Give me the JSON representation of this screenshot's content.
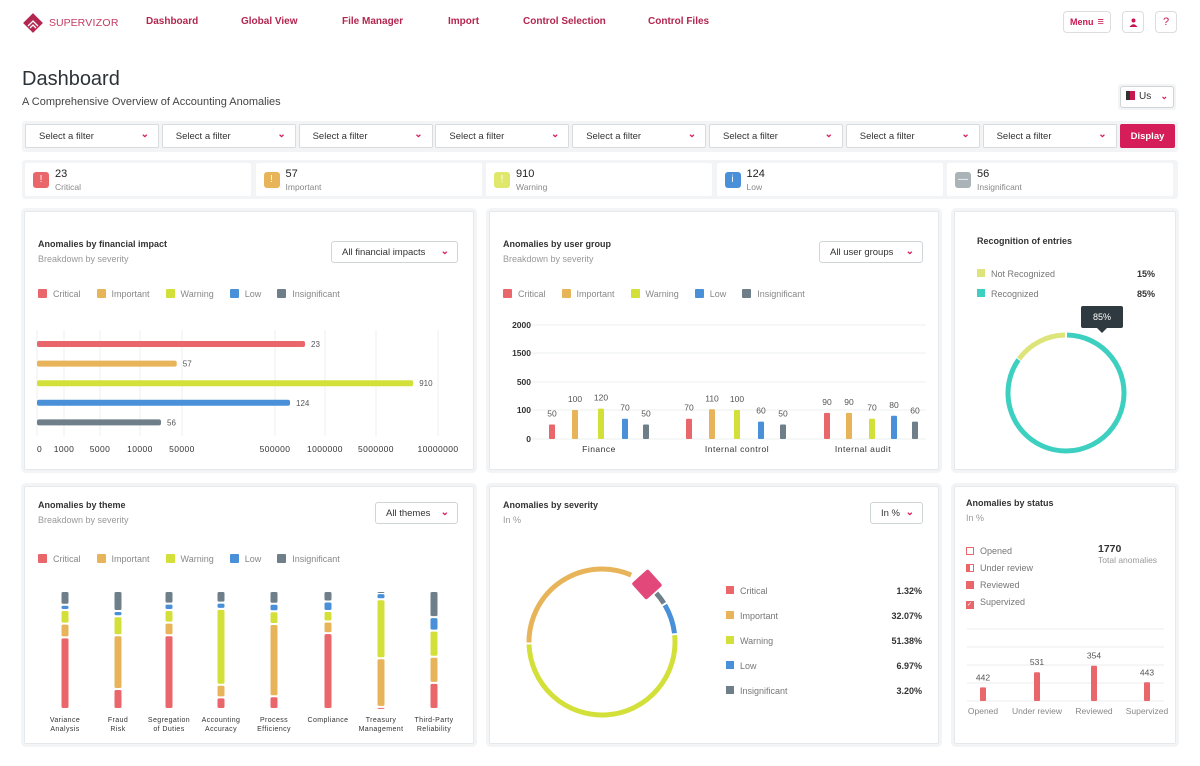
{
  "colors": {
    "brand": "#c8174f",
    "critical": "#e9666b",
    "important": "#e8b45a",
    "warning": "#d4e03a",
    "low": "#4a90d9",
    "insignificant": "#6e7f8a",
    "teal": "#3dd0c0",
    "light_green": "#dde57a"
  },
  "logo": {
    "text_light": "SUPER",
    "text_bold": "VIZOR"
  },
  "nav": [
    "Dashboard",
    "Global View",
    "File Manager",
    "Import",
    "Control Selection",
    "Control Files"
  ],
  "header": {
    "menu_label": "Menu",
    "menu_icon": "hamburger-icon",
    "user_icon": "user-icon",
    "help_label": "?"
  },
  "page": {
    "title": "Dashboard",
    "subtitle": "A Comprehensive Overview of Accounting Anomalies",
    "locale": "Us"
  },
  "filters": {
    "placeholders": [
      "Select a filter",
      "Select a filter",
      "Select a filter",
      "Select a filter",
      "Select a filter",
      "Select a filter",
      "Select a filter",
      "Select a filter"
    ],
    "display_label": "Display"
  },
  "kpis": [
    {
      "value": "23",
      "label": "Critical",
      "icon": "!"
    },
    {
      "value": "57",
      "label": "Important",
      "icon": "!"
    },
    {
      "value": "910",
      "label": "Warning",
      "icon": "!"
    },
    {
      "value": "124",
      "label": "Low",
      "icon": "i"
    },
    {
      "value": "56",
      "label": "Insignificant",
      "icon": "—"
    }
  ],
  "severity_labels": [
    "Critical",
    "Important",
    "Warning",
    "Low",
    "Insignificant"
  ],
  "financial": {
    "title": "Anomalies by financial impact",
    "subtitle": "Breakdown by severity",
    "dropdown": "All financial impacts",
    "chart_data": {
      "type": "bar",
      "orientation": "horizontal",
      "labels": [
        "23",
        "57",
        "910",
        "124",
        "56"
      ],
      "bar_values": [
        800000,
        45000,
        8000000,
        650000,
        30000
      ],
      "ticks": [
        "0",
        "1000",
        "5000",
        "10000",
        "50000",
        "500000",
        "1000000",
        "5000000",
        "10000000"
      ],
      "tick_values": [
        0,
        1000,
        5000,
        10000,
        50000,
        500000,
        1000000,
        5000000,
        10000000
      ],
      "grid": true
    }
  },
  "usergroup": {
    "title": "Anomalies by user group",
    "subtitle": "Breakdown by severity",
    "dropdown": "All user groups",
    "chart_data": {
      "type": "bar",
      "categories": [
        "Finance",
        "Internal control",
        "Internal audit"
      ],
      "series": [
        {
          "name": "Critical",
          "values": [
            50,
            70,
            90
          ]
        },
        {
          "name": "Important",
          "values": [
            100,
            110,
            90
          ]
        },
        {
          "name": "Warning",
          "values": [
            120,
            100,
            70
          ]
        },
        {
          "name": "Low",
          "values": [
            70,
            60,
            80
          ]
        },
        {
          "name": "Insignificant",
          "values": [
            50,
            50,
            60
          ]
        }
      ],
      "yticks": [
        "0",
        "100",
        "500",
        "1500",
        "2000"
      ],
      "ytick_values": [
        0,
        100,
        500,
        1500,
        2000
      ],
      "grid": true
    }
  },
  "recognition": {
    "title": "Recognition of entries",
    "items": [
      {
        "label": "Not Recognized",
        "value": "15%",
        "pct": 15
      },
      {
        "label": "Recognized",
        "value": "85%",
        "pct": 85
      }
    ],
    "tooltip": "85%"
  },
  "theme": {
    "title": "Anomalies by theme",
    "subtitle": "Breakdown by severity",
    "dropdown": "All themes",
    "chart_data": {
      "type": "bar",
      "stacked": true,
      "categories": [
        [
          "Variance",
          "Analysis"
        ],
        [
          "Fraud",
          "Risk"
        ],
        [
          "Segregation",
          "of Duties"
        ],
        [
          "Accounting",
          "Accuracy"
        ],
        [
          "Process",
          "Efficiency"
        ],
        [
          "Compliance",
          ""
        ],
        [
          "Treasury",
          "Management"
        ],
        [
          "Third-Party",
          "Reliability"
        ]
      ],
      "series": [
        {
          "name": "Critical",
          "values": [
            68,
            19,
            70,
            11,
            12,
            72,
            2,
            25
          ]
        },
        {
          "name": "Important",
          "values": [
            13,
            51,
            12,
            12,
            68,
            11,
            47,
            25
          ]
        },
        {
          "name": "Warning",
          "values": [
            13,
            18,
            12,
            72,
            12,
            10,
            57,
            25
          ]
        },
        {
          "name": "Low",
          "values": [
            5,
            5,
            6,
            6,
            7,
            9,
            6,
            13
          ]
        },
        {
          "name": "Insignificant",
          "values": [
            13,
            19,
            12,
            11,
            12,
            10,
            2,
            25
          ]
        }
      ]
    }
  },
  "severity": {
    "title": "Anomalies by severity",
    "subtitle": "In %",
    "dropdown": "In %",
    "chart_data": {
      "type": "pie",
      "donut": true,
      "labels": [
        "Critical",
        "Important",
        "Warning",
        "Low",
        "Insignificant"
      ],
      "values": [
        "1.32%",
        "32.07%",
        "51.38%",
        "6.97%",
        "3.20%"
      ],
      "pct": [
        1.32,
        32.07,
        51.38,
        6.97,
        3.2
      ]
    }
  },
  "status": {
    "title": "Anomalies by status",
    "subtitle": "In %",
    "total": "1770",
    "total_label": "Total anomalies",
    "legend": [
      "Opened",
      "Under review",
      "Reviewed",
      "Supervized"
    ],
    "chart_data": {
      "type": "bar",
      "categories": [
        "Opened",
        "Under review",
        "Reviewed",
        "Supervized"
      ],
      "labels": [
        "442",
        "531",
        "354",
        "443"
      ],
      "levels": [
        0.19,
        0.4,
        0.49,
        0.26
      ]
    }
  }
}
